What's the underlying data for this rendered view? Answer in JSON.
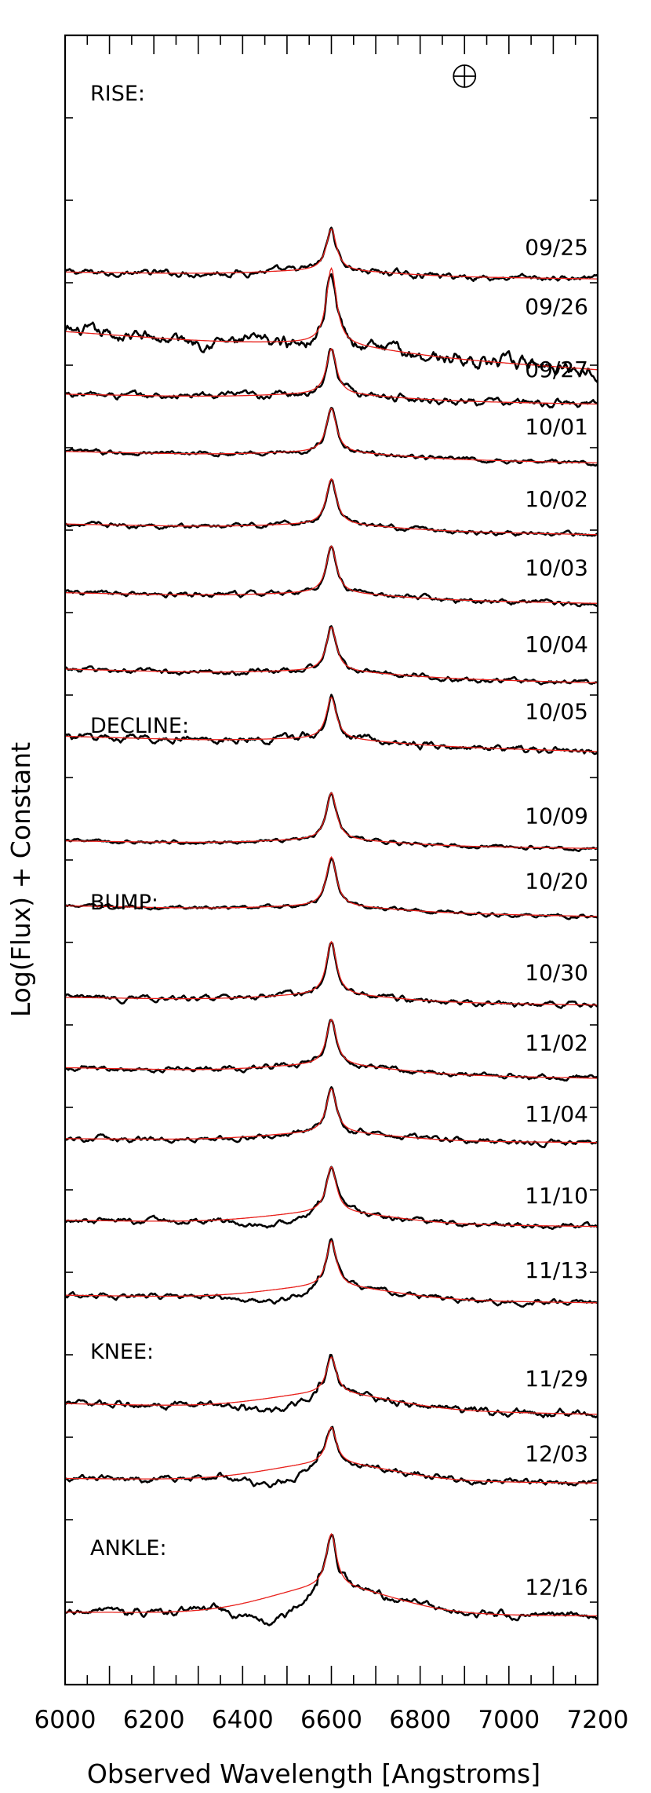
{
  "chart_data": {
    "type": "line",
    "title": "",
    "xlabel": "Observed Wavelength [Angstroms]",
    "ylabel": "Log(Flux) + Constant",
    "xlim": [
      6000,
      7200
    ],
    "x_ticks": [
      6000,
      6200,
      6400,
      6600,
      6800,
      7000,
      7200
    ],
    "x_tick_labels": [
      "6000",
      "6200",
      "6400",
      "6600",
      "6800",
      "7000",
      "7200"
    ],
    "grid": false,
    "legend": "none",
    "telluric_symbol": "⊕",
    "telluric_wavelength": 6900,
    "colors": {
      "observed": "#000000",
      "model": "#e8201b",
      "frame": "#000000"
    },
    "phase_labels": [
      "RISE:",
      "DECLINE:",
      "BUMP:",
      "KNEE:",
      "ANKLE:"
    ],
    "series": [
      {
        "date": "09/25",
        "baseline": -2.0,
        "slope": -0.09,
        "peak": 0.55,
        "broad": 0.06,
        "noise": 0.035
      },
      {
        "date": "09/26",
        "baseline": -2.78,
        "slope": -0.5,
        "peak": 1.0,
        "broad": 0.08,
        "noise": 0.075
      },
      {
        "date": "09/27",
        "baseline": -3.6,
        "slope": -0.13,
        "peak": 0.6,
        "broad": 0.06,
        "noise": 0.04
      },
      {
        "date": "10/01",
        "baseline": -4.35,
        "slope": -0.15,
        "peak": 0.58,
        "broad": 0.06,
        "noise": 0.025
      },
      {
        "date": "10/02",
        "baseline": -5.3,
        "slope": -0.14,
        "peak": 0.6,
        "broad": 0.06,
        "noise": 0.025
      },
      {
        "date": "10/03",
        "baseline": -6.2,
        "slope": -0.14,
        "peak": 0.62,
        "broad": 0.06,
        "noise": 0.03
      },
      {
        "date": "10/04",
        "baseline": -7.2,
        "slope": -0.18,
        "peak": 0.58,
        "broad": 0.06,
        "noise": 0.03
      },
      {
        "date": "10/05",
        "baseline": -8.08,
        "slope": -0.2,
        "peak": 0.55,
        "broad": 0.06,
        "noise": 0.04
      },
      {
        "date": "10/09",
        "baseline": -9.45,
        "slope": -0.1,
        "peak": 0.62,
        "broad": 0.06,
        "noise": 0.02
      },
      {
        "date": "10/20",
        "baseline": -10.3,
        "slope": -0.14,
        "peak": 0.65,
        "broad": 0.06,
        "noise": 0.02
      },
      {
        "date": "10/30",
        "baseline": -11.5,
        "slope": -0.1,
        "peak": 0.7,
        "broad": 0.08,
        "noise": 0.03
      },
      {
        "date": "11/02",
        "baseline": -12.42,
        "slope": -0.14,
        "peak": 0.6,
        "broad": 0.1,
        "noise": 0.03
      },
      {
        "date": "11/04",
        "baseline": -13.35,
        "slope": -0.05,
        "peak": 0.58,
        "broad": 0.1,
        "noise": 0.03
      },
      {
        "date": "11/10",
        "baseline": -14.42,
        "slope": -0.08,
        "peak": 0.6,
        "broad": 0.14,
        "noise": 0.03
      },
      {
        "date": "11/13",
        "baseline": -15.4,
        "slope": -0.1,
        "peak": 0.6,
        "broad": 0.16,
        "noise": 0.03
      },
      {
        "date": "11/29",
        "baseline": -16.82,
        "slope": -0.14,
        "peak": 0.48,
        "broad": 0.2,
        "noise": 0.04
      },
      {
        "date": "12/03",
        "baseline": -17.8,
        "slope": -0.06,
        "peak": 0.48,
        "broad": 0.22,
        "noise": 0.035
      },
      {
        "date": "12/16",
        "baseline": -19.55,
        "slope": -0.05,
        "peak": 0.7,
        "broad": 0.35,
        "noise": 0.04
      }
    ]
  }
}
